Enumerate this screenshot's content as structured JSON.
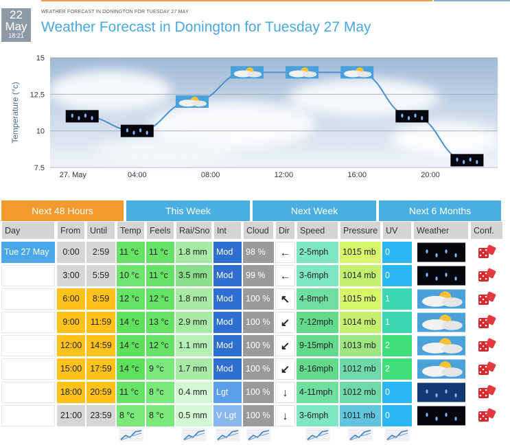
{
  "date_badge": {
    "day": "22",
    "month": "May",
    "time": "18:21"
  },
  "header": {
    "small_title": "WEATHER FORECAST IN DONINGTON FOR TUESDAY 27 MAY",
    "title": "Weather Forecast in Donington for Tuesday 27 May"
  },
  "chart_data": {
    "type": "line",
    "ylabel": "Temperature (°c)",
    "ylim": [
      7.5,
      15
    ],
    "yticks": [
      "15",
      "12.5",
      "10",
      "7.5"
    ],
    "xtick_labels": [
      "27. May",
      "04:00",
      "08:00",
      "12:00",
      "16:00",
      "20:00"
    ],
    "grid": true,
    "series": [
      {
        "x": [
          "00:00",
          "03:00",
          "06:00",
          "09:00",
          "12:00",
          "15:00",
          "18:00",
          "21:00"
        ],
        "values": [
          11,
          10,
          12,
          14,
          14,
          14,
          11,
          8
        ],
        "icons": [
          "rain-icon",
          "rain-icon",
          "sun-cloud-icon",
          "sun-cloud-icon",
          "sun-cloud-icon",
          "sun-cloud-icon",
          "rain-icon",
          "rain-icon"
        ]
      }
    ]
  },
  "tabs": [
    {
      "label": "Next 48 Hours",
      "color": "#f29a2e"
    },
    {
      "label": "This Week",
      "color": "#4aaee2"
    },
    {
      "label": "Next Week",
      "color": "#4aaee2"
    },
    {
      "label": "Next 6 Months",
      "color": "#4aaee2"
    }
  ],
  "table": {
    "headers": [
      "Day",
      "From",
      "Until",
      "Temp",
      "Feels",
      "Rai/Sno",
      "Int",
      "Cloud",
      "Dir",
      "Speed",
      "Pressure",
      "UV",
      "Weather",
      "Conf."
    ],
    "rows": [
      {
        "day": "Tue 27 May",
        "from": "0:00",
        "until": "2:59",
        "temp": "11 °c",
        "feels": "11 °c",
        "rain": "1.8 mm",
        "int": "Mod",
        "cloud": "98 %",
        "dir": "←",
        "speed": "2-5mph",
        "pressure": "1015 mb",
        "uv": "0",
        "weather": "rain-icon"
      },
      {
        "day": "",
        "from": "3:00",
        "until": "5:59",
        "temp": "10 °c",
        "feels": "11 °c",
        "rain": "3.5 mm",
        "int": "Mod",
        "cloud": "99 %",
        "dir": "←",
        "speed": "3-6mph",
        "pressure": "1014 mb",
        "uv": "0",
        "weather": "rain-icon"
      },
      {
        "day": "",
        "from": "6:00",
        "until": "8:59",
        "temp": "12 °c",
        "feels": "12 °c",
        "rain": "1.8 mm",
        "int": "Mod",
        "cloud": "100 %",
        "dir": "↖",
        "speed": "4-8mph",
        "pressure": "1015 mb",
        "uv": "1",
        "weather": "sun-cloud-icon"
      },
      {
        "day": "",
        "from": "9:00",
        "until": "11:59",
        "temp": "14 °c",
        "feels": "13 °c",
        "rain": "2.9 mm",
        "int": "Mod",
        "cloud": "100 %",
        "dir": "↙",
        "speed": "7-12mph",
        "pressure": "1014 mb",
        "uv": "1",
        "weather": "sun-cloud-icon"
      },
      {
        "day": "",
        "from": "12:00",
        "until": "14:59",
        "temp": "14 °c",
        "feels": "12 °c",
        "rain": "1.1 mm",
        "int": "Mod",
        "cloud": "100 %",
        "dir": "↙",
        "speed": "9-15mph",
        "pressure": "1013 mb",
        "uv": "2",
        "weather": "sun-cloud-icon"
      },
      {
        "day": "",
        "from": "15:00",
        "until": "17:59",
        "temp": "14 °c",
        "feels": "9 °c",
        "rain": "1.7 mm",
        "int": "Mod",
        "cloud": "100 %",
        "dir": "↙",
        "speed": "8-16mph",
        "pressure": "1012 mb",
        "uv": "2",
        "weather": "sun-cloud-icon"
      },
      {
        "day": "",
        "from": "18:00",
        "until": "20:59",
        "temp": "11 °c",
        "feels": "8 °c",
        "rain": "0.4 mm",
        "int": "Lgt",
        "cloud": "100 %",
        "dir": "↓",
        "speed": "4-11mph",
        "pressure": "1012 mb",
        "uv": "0",
        "weather": "rain-dusk-icon"
      },
      {
        "day": "",
        "from": "21:00",
        "until": "23:59",
        "temp": "8 °c",
        "feels": "8 °c",
        "rain": "0.5 mm",
        "int": "V Lgt",
        "cloud": "100 %",
        "dir": "↓",
        "speed": "3-6mph",
        "pressure": "1011 mb",
        "uv": "0",
        "weather": "rain-icon"
      }
    ],
    "footer_icons": [
      "trend-chart-icon"
    ]
  }
}
